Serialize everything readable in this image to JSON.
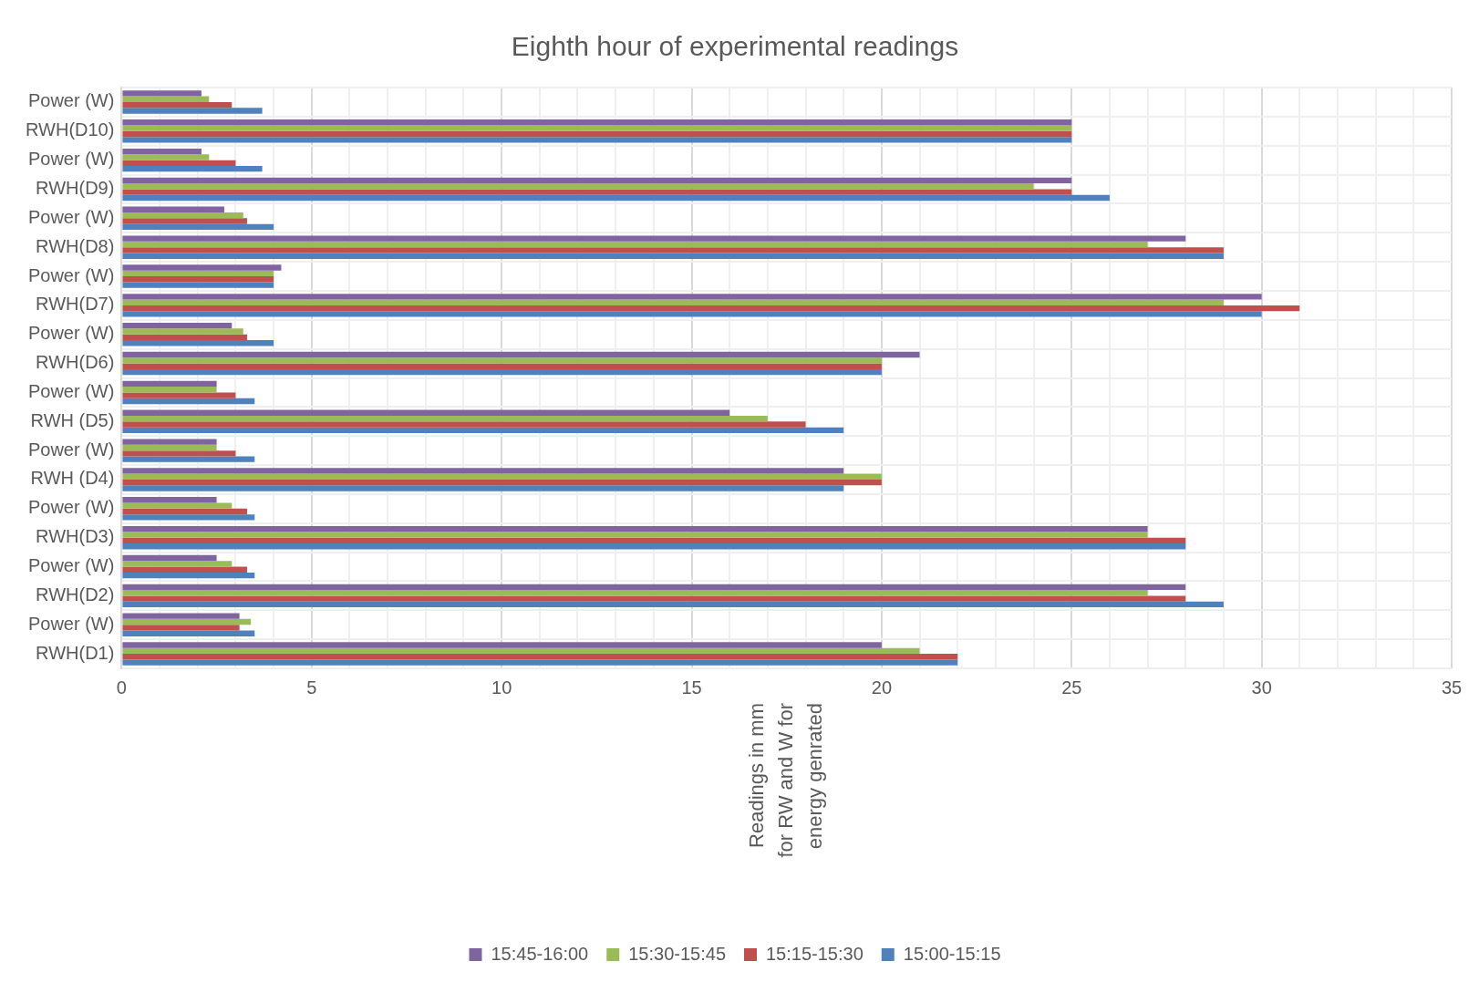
{
  "chart_data": {
    "type": "bar",
    "orientation": "horizontal",
    "title": "Eighth hour of experimental readings",
    "annotations": [
      "Readings in mm for RW and W for energy genrated"
    ],
    "categories": [
      "Power (W)",
      "RWH(D10)",
      "Power (W)",
      "RWH(D9)",
      "Power (W)",
      "RWH(D8)",
      "Power (W)",
      "RWH(D7)",
      "Power (W)",
      "RWH(D6)",
      "Power (W)",
      "RWH (D5)",
      "Power (W)",
      "RWH (D4)",
      "Power (W)",
      "RWH(D3)",
      "Power (W)",
      "RWH(D2)",
      "Power (W)",
      "RWH(D1)"
    ],
    "series": [
      {
        "name": "15:45-16:00",
        "color": "#8064a2",
        "values": [
          2.1,
          25,
          2.1,
          25,
          2.7,
          28,
          4.2,
          30,
          2.9,
          21,
          2.5,
          16,
          2.5,
          19,
          2.5,
          27,
          2.5,
          28,
          3.1,
          20
        ]
      },
      {
        "name": "15:30-15:45",
        "color": "#9bbb59",
        "values": [
          2.3,
          25,
          2.3,
          24,
          3.2,
          27,
          4,
          29,
          3.2,
          20,
          2.5,
          17,
          2.5,
          20,
          2.9,
          27,
          2.9,
          27,
          3.4,
          21
        ]
      },
      {
        "name": "15:15-15:30",
        "color": "#c0504d",
        "values": [
          2.9,
          25,
          3,
          25,
          3.3,
          29,
          4,
          31,
          3.3,
          20,
          3,
          18,
          3,
          20,
          3.3,
          28,
          3.3,
          28,
          3.1,
          22
        ]
      },
      {
        "name": "15:00-15:15",
        "color": "#4f81bd",
        "values": [
          3.7,
          25,
          3.7,
          26,
          4,
          29,
          4,
          30,
          4,
          20,
          3.5,
          19,
          3.5,
          19,
          3.5,
          28,
          3.5,
          29,
          3.5,
          22
        ]
      }
    ],
    "xlim": [
      0,
      35
    ],
    "xticks": [
      0,
      {
        "value": 1,
        "label": null
      },
      {
        "value": 2,
        "label": null
      },
      {
        "value": 3,
        "label": null
      },
      {
        "value": 4,
        "label": null
      },
      5,
      {
        "value": 6,
        "label": null
      },
      {
        "value": 7,
        "label": null
      },
      {
        "value": 8,
        "label": null
      },
      {
        "value": 9,
        "label": null
      },
      10,
      {
        "value": 11,
        "label": null
      },
      {
        "value": 12,
        "label": null
      },
      {
        "value": 13,
        "label": null
      },
      {
        "value": 14,
        "label": null
      },
      15,
      {
        "value": 16,
        "label": null
      },
      {
        "value": 17,
        "label": null
      },
      {
        "value": 18,
        "label": null
      },
      {
        "value": 19,
        "label": null
      },
      20,
      {
        "value": 21,
        "label": null
      },
      {
        "value": 22,
        "label": null
      },
      {
        "value": 23,
        "label": null
      },
      {
        "value": 24,
        "label": null
      },
      25,
      {
        "value": 26,
        "label": null
      },
      {
        "value": 27,
        "label": null
      },
      {
        "value": 28,
        "label": null
      },
      {
        "value": 29,
        "label": null
      },
      30,
      {
        "value": 31,
        "label": null
      },
      {
        "value": 32,
        "label": null
      },
      {
        "value": 33,
        "label": null
      },
      {
        "value": 34,
        "label": null
      },
      35
    ],
    "grid": true,
    "legend": "bottom"
  }
}
